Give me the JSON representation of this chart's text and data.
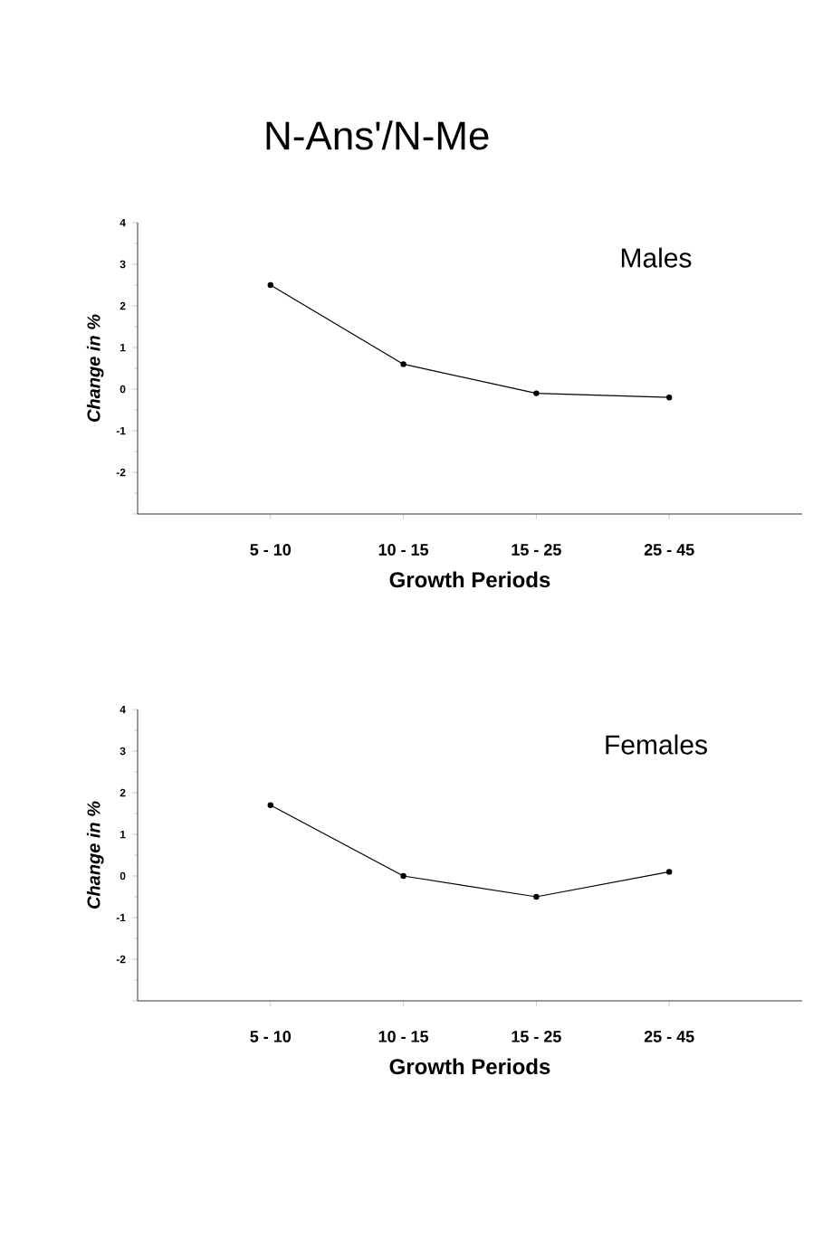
{
  "chart_data": [
    {
      "type": "line",
      "title": "N-Ans'/N-Me",
      "annotations": [
        "Males"
      ],
      "xlabel": "Growth Periods",
      "ylabel": "Change in %",
      "categories": [
        "5 - 10",
        "10 - 15",
        "15 - 25",
        "25 - 45"
      ],
      "series": [
        {
          "color": "#000000",
          "values": [
            2.5,
            0.6,
            -0.1,
            -0.2
          ]
        }
      ],
      "ylim": [
        -3,
        4
      ],
      "yticks": [
        {
          "value": -3,
          "label": null
        },
        -2,
        -1,
        0,
        1,
        2,
        3,
        4
      ],
      "marker": "circle",
      "line_style": "solid",
      "grid": false
    },
    {
      "type": "line",
      "annotations": [
        "Females"
      ],
      "xlabel": "Growth Periods",
      "ylabel": "Change in %",
      "categories": [
        "5 - 10",
        "10 - 15",
        "15 - 25",
        "25 - 45"
      ],
      "series": [
        {
          "color": "#000000",
          "values": [
            1.7,
            0.0,
            -0.5,
            0.1
          ]
        }
      ],
      "ylim": [
        -3,
        4
      ],
      "yticks": [
        {
          "value": -3,
          "label": null
        },
        -2,
        -1,
        0,
        1,
        2,
        3,
        4
      ],
      "marker": "circle",
      "line_style": "solid",
      "grid": false
    }
  ]
}
